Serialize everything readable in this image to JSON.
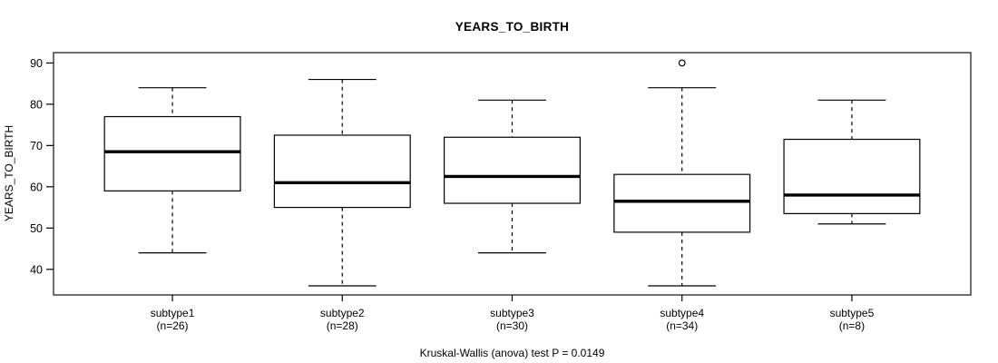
{
  "chart_data": {
    "type": "boxplot",
    "title": "YEARS_TO_BIRTH",
    "ylabel": "YEARS_TO_BIRTH",
    "xlabel": "",
    "annotation": "Kruskal-Wallis (anova) test P = 0.0149",
    "y_ticks": [
      40,
      50,
      60,
      70,
      80,
      90
    ],
    "ylim": [
      33.8,
      92.5
    ],
    "grid": false,
    "legend": null,
    "categories": [
      "subtype1",
      "subtype2",
      "subtype3",
      "subtype4",
      "subtype5"
    ],
    "groups": [
      {
        "label": "subtype1",
        "sublabel": "(n=26)",
        "n": 26,
        "whisker_low": 44,
        "q1": 59,
        "median": 68.5,
        "q3": 77,
        "whisker_high": 84,
        "outliers": []
      },
      {
        "label": "subtype2",
        "sublabel": "(n=28)",
        "n": 28,
        "whisker_low": 36,
        "q1": 55,
        "median": 61,
        "q3": 72.5,
        "whisker_high": 86,
        "outliers": []
      },
      {
        "label": "subtype3",
        "sublabel": "(n=30)",
        "n": 30,
        "whisker_low": 44,
        "q1": 56,
        "median": 62.5,
        "q3": 72,
        "whisker_high": 81,
        "outliers": []
      },
      {
        "label": "subtype4",
        "sublabel": "(n=34)",
        "n": 34,
        "whisker_low": 36,
        "q1": 49,
        "median": 56.5,
        "q3": 63,
        "whisker_high": 84,
        "outliers": [
          90
        ]
      },
      {
        "label": "subtype5",
        "sublabel": "(n=8)",
        "n": 8,
        "whisker_low": 51,
        "q1": 53.5,
        "median": 58,
        "q3": 71.5,
        "whisker_high": 81,
        "outliers": []
      }
    ],
    "colors": {
      "line": "#000000",
      "frame": "#333333",
      "box_fill": "#ffffff",
      "text": "#000000",
      "background": "#ffffff"
    }
  }
}
